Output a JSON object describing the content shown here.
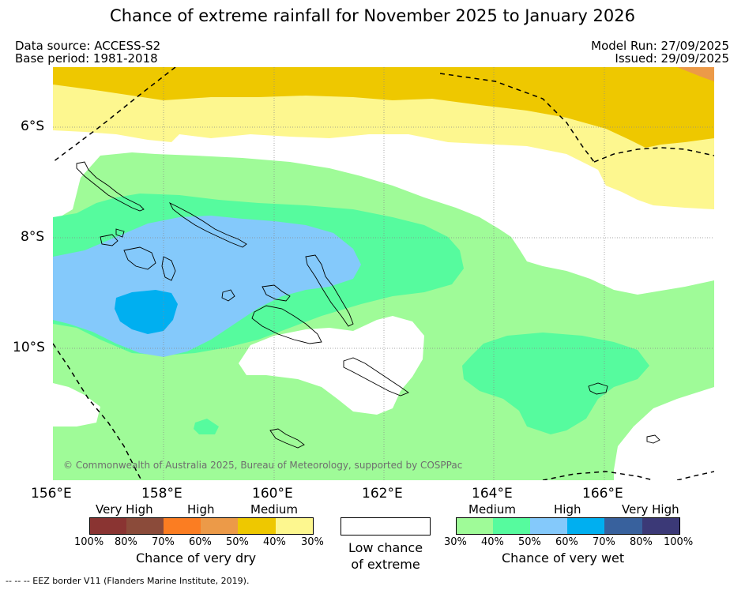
{
  "header": {
    "title": "Chance of extreme rainfall for November 2025 to January 2026",
    "data_source": "Data source: ACCESS-S2",
    "base_period": "Base period: 1981-2018",
    "model_run": "Model Run: 27/09/2025",
    "issued": "Issued: 29/09/2025"
  },
  "map": {
    "lat_labels": [
      "6°S",
      "8°S",
      "10°S"
    ],
    "lon_labels": [
      "156°E",
      "158°E",
      "160°E",
      "162°E",
      "164°E",
      "166°E"
    ],
    "copyright": "© Commonwealth of Australia 2025, Bureau of Meteorology, supported by COSPPac",
    "colors": {
      "wet_30_40": "#9ffb98",
      "wet_40_50": "#56fb9e",
      "wet_50_60": "#84c9fb",
      "wet_60_70": "#00aff0",
      "dry_30_40": "#fdf78f",
      "dry_40_50": "#eec800",
      "dry_50_60": "#ec9a48",
      "low": "#ffffff"
    }
  },
  "legend": {
    "dry": {
      "levels": [
        "Very High",
        "High",
        "Medium"
      ],
      "ticks": [
        "100%",
        "80%",
        "70%",
        "60%",
        "50%",
        "40%",
        "30%"
      ],
      "colors": [
        "#8a3432",
        "#8b4b3a",
        "#fb7d22",
        "#ec9a48",
        "#eec800",
        "#fdf78f"
      ],
      "caption": "Chance of very dry"
    },
    "low": {
      "line1": "Low chance",
      "line2": "of extreme"
    },
    "wet": {
      "levels": [
        "Medium",
        "High",
        "Very High"
      ],
      "ticks": [
        "30%",
        "40%",
        "50%",
        "60%",
        "70%",
        "80%",
        "100%"
      ],
      "colors": [
        "#9ffb98",
        "#56fb9e",
        "#84c9fb",
        "#00aff0",
        "#38619d",
        "#3b3977"
      ],
      "caption": "Chance of very wet"
    }
  },
  "footer": "--  --  -- EEZ border V11 (Flanders Marine Institute, 2019)."
}
